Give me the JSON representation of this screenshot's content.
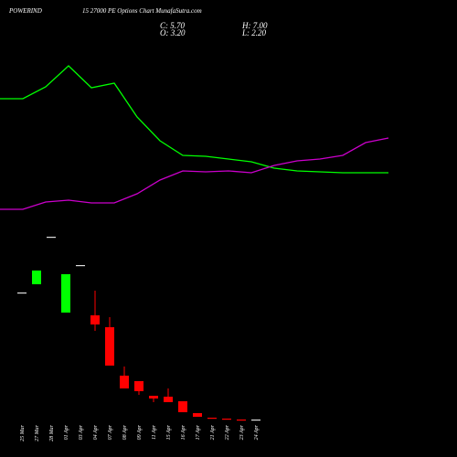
{
  "chart_data": {
    "type": "candlestick",
    "ticker": "POWERIND",
    "title": "15 27000  PE Options  Chart MunafaSutra.com",
    "info": [
      "C: 5.70",
      "H: 7.00",
      "O: 3.20",
      "L: 2.20"
    ],
    "categories": [
      "25 Mar",
      "27 Mar",
      "28 Mar",
      "01 Apr",
      "03 Apr",
      "04 Apr",
      "07 Apr",
      "08 Apr",
      "09 Apr",
      "11 Apr",
      "15 Apr",
      "16 Apr",
      "17 Apr",
      "21 Apr",
      "22 Apr",
      "23 Apr",
      "24 Apr"
    ],
    "open": [
      75,
      79.5,
      105.5,
      64,
      90,
      62.5,
      56,
      29.5,
      26.5,
      18.5,
      18,
      15.5,
      9,
      6.5,
      6,
      5.5,
      5.5
    ],
    "high": [
      75,
      87,
      105.5,
      85,
      90,
      76,
      61.5,
      34.5,
      26.5,
      18.5,
      22.5,
      15.5,
      9,
      6.5,
      6,
      5.5,
      5.5
    ],
    "low": [
      75,
      79.5,
      105.5,
      64,
      90,
      54,
      35,
      22.5,
      19,
      15,
      15,
      9.5,
      7,
      6,
      5.5,
      5,
      5.5
    ],
    "close": [
      75,
      87,
      105.5,
      85,
      90,
      57.5,
      35,
      22.5,
      21,
      17,
      15,
      9.5,
      7,
      6,
      5.5,
      5,
      5.5
    ],
    "up_color": "#00ff00",
    "down_color": "#ff0000",
    "doji_color": "#dddddd",
    "ylim": [
      0,
      235
    ],
    "lines": {
      "x": [
        0,
        1,
        2,
        3,
        4,
        5,
        6,
        7,
        8,
        9,
        10,
        11,
        12,
        13,
        14,
        15,
        16,
        17
      ],
      "xlim": [
        0,
        17
      ],
      "y2lim": [
        0,
        300
      ],
      "series": [
        {
          "color": "#00ff00",
          "values": [
            192,
            192,
            205,
            228,
            204,
            209,
            172,
            146,
            130,
            129,
            126,
            123,
            116,
            113,
            112,
            111,
            111,
            111
          ]
        },
        {
          "color": "#cc00cc",
          "values": [
            71,
            71,
            79,
            81,
            78,
            78,
            88,
            103,
            113,
            112,
            113,
            111,
            119,
            124,
            126,
            130,
            144,
            149
          ]
        }
      ]
    }
  }
}
